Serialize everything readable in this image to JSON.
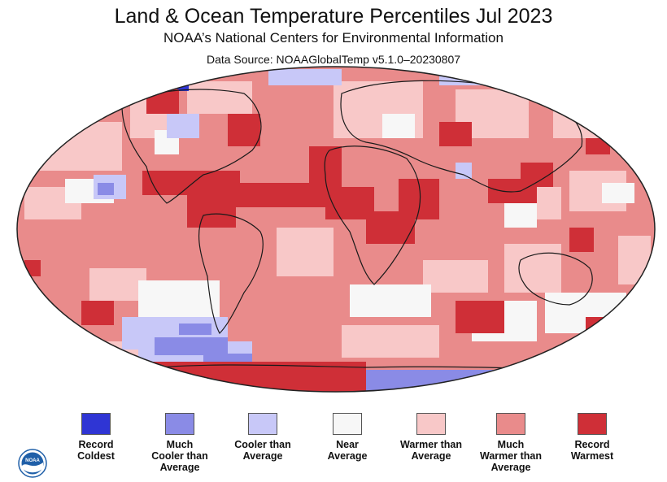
{
  "header": {
    "title": "Land & Ocean Temperature Percentiles Jul 2023",
    "subtitle": "NOAA’s National Centers for Environmental Information",
    "source": "Data Source: NOAAGlobalTemp v5.1.0–20230807"
  },
  "legend": {
    "items": [
      {
        "label": "Record\nColdest",
        "color": "#2f35d4"
      },
      {
        "label": "Much\nCooler than\nAverage",
        "color": "#8a8be6"
      },
      {
        "label": "Cooler than\nAverage",
        "color": "#c8c8f8"
      },
      {
        "label": "Near\nAverage",
        "color": "#f7f7f7"
      },
      {
        "label": "Warmer than\nAverage",
        "color": "#f8c8c8"
      },
      {
        "label": "Much\nWarmer than\nAverage",
        "color": "#e98b8b"
      },
      {
        "label": "Record\nWarmest",
        "color": "#cf2f37"
      }
    ]
  },
  "logo": {
    "icon": "noaa-logo-icon",
    "text": "NOAA"
  }
}
